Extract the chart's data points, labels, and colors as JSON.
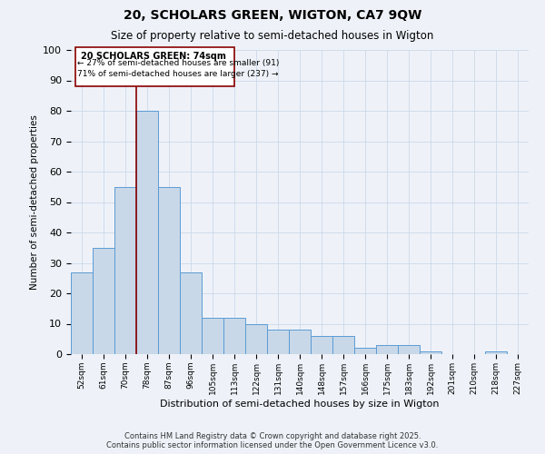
{
  "title1": "20, SCHOLARS GREEN, WIGTON, CA7 9QW",
  "title2": "Size of property relative to semi-detached houses in Wigton",
  "xlabel": "Distribution of semi-detached houses by size in Wigton",
  "ylabel": "Number of semi-detached properties",
  "categories": [
    "52sqm",
    "61sqm",
    "70sqm",
    "78sqm",
    "87sqm",
    "96sqm",
    "105sqm",
    "113sqm",
    "122sqm",
    "131sqm",
    "140sqm",
    "148sqm",
    "157sqm",
    "166sqm",
    "175sqm",
    "183sqm",
    "192sqm",
    "201sqm",
    "210sqm",
    "218sqm",
    "227sqm"
  ],
  "values": [
    27,
    35,
    55,
    80,
    55,
    27,
    12,
    12,
    10,
    8,
    8,
    6,
    6,
    2,
    3,
    3,
    1,
    0,
    0,
    1,
    0
  ],
  "bar_color": "#c8d8e8",
  "bar_edge_color": "#5b9bd5",
  "annotation_text_line1": "20 SCHOLARS GREEN: 74sqm",
  "annotation_text_line2": "← 27% of semi-detached houses are smaller (91)",
  "annotation_text_line3": "71% of semi-detached houses are larger (237) →",
  "annotation_box_color": "white",
  "annotation_box_edge": "#8b0000",
  "vline_color": "#8b0000",
  "grid_color": "#ccd8ea",
  "bg_color": "#eef2f8",
  "ylim": [
    0,
    100
  ],
  "yticks": [
    0,
    10,
    20,
    30,
    40,
    50,
    60,
    70,
    80,
    90,
    100
  ],
  "footer1": "Contains HM Land Registry data © Crown copyright and database right 2025.",
  "footer2": "Contains public sector information licensed under the Open Government Licence v3.0."
}
